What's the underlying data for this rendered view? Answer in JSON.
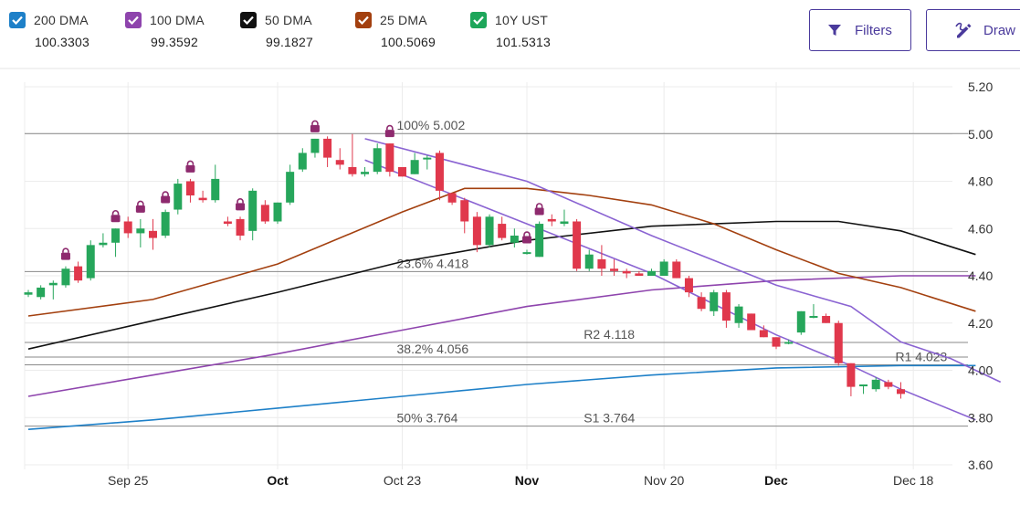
{
  "legend": [
    {
      "name": "200 DMA",
      "value": "100.3303",
      "color": "#1e80c8",
      "checked": true
    },
    {
      "name": "100 DMA",
      "value": "99.3592",
      "color": "#8e44ad",
      "checked": true
    },
    {
      "name": "50 DMA",
      "value": "99.1827",
      "color": "#111111",
      "checked": true
    },
    {
      "name": "25 DMA",
      "value": "100.5069",
      "color": "#a3400f",
      "checked": true
    },
    {
      "name": "10Y UST",
      "value": "101.5313",
      "color": "#1da65a",
      "checked": true
    }
  ],
  "toolbar": {
    "filters_label": "Filters",
    "draw_label": "Draw"
  },
  "chart_data": {
    "type": "candlestick",
    "ylim": [
      3.6,
      5.2
    ],
    "y_ticks": [
      "5.20",
      "5.00",
      "4.80",
      "4.60",
      "4.40",
      "4.20",
      "4.00",
      "3.80",
      "3.60"
    ],
    "x_ticks": [
      {
        "label": "Sep 25",
        "bar": 8,
        "bold": false
      },
      {
        "label": "Oct",
        "bar": 20,
        "bold": true
      },
      {
        "label": "Oct 23",
        "bar": 30,
        "bold": false
      },
      {
        "label": "Nov",
        "bar": 40,
        "bold": true
      },
      {
        "label": "Nov 20",
        "bar": 51,
        "bold": false
      },
      {
        "label": "Dec",
        "bar": 60,
        "bold": true
      },
      {
        "label": "Dec 18",
        "bar": 71,
        "bold": false
      }
    ],
    "candles": [
      [
        4.32,
        4.34,
        4.31,
        4.33
      ],
      [
        4.31,
        4.36,
        4.3,
        4.35
      ],
      [
        4.36,
        4.38,
        4.3,
        4.37
      ],
      [
        4.36,
        4.44,
        4.35,
        4.43
      ],
      [
        4.44,
        4.46,
        4.37,
        4.38
      ],
      [
        4.39,
        4.55,
        4.38,
        4.53
      ],
      [
        4.53,
        4.58,
        4.52,
        4.54
      ],
      [
        4.54,
        4.6,
        4.48,
        4.6
      ],
      [
        4.63,
        4.65,
        4.56,
        4.58
      ],
      [
        4.58,
        4.64,
        4.52,
        4.6
      ],
      [
        4.59,
        4.64,
        4.51,
        4.56
      ],
      [
        4.57,
        4.68,
        4.56,
        4.67
      ],
      [
        4.68,
        4.81,
        4.66,
        4.79
      ],
      [
        4.8,
        4.81,
        4.71,
        4.74
      ],
      [
        4.73,
        4.76,
        4.71,
        4.72
      ],
      [
        4.72,
        4.87,
        4.71,
        4.81
      ],
      [
        4.63,
        4.65,
        4.61,
        4.62
      ],
      [
        4.64,
        4.65,
        4.55,
        4.57
      ],
      [
        4.59,
        4.77,
        4.55,
        4.76
      ],
      [
        4.7,
        4.72,
        4.62,
        4.63
      ],
      [
        4.63,
        4.71,
        4.62,
        4.71
      ],
      [
        4.71,
        4.87,
        4.7,
        4.84
      ],
      [
        4.85,
        4.94,
        4.84,
        4.92
      ],
      [
        4.92,
        4.98,
        4.9,
        4.98
      ],
      [
        4.98,
        4.99,
        4.86,
        4.9
      ],
      [
        4.89,
        4.94,
        4.85,
        4.87
      ],
      [
        4.86,
        5.0,
        4.82,
        4.83
      ],
      [
        4.83,
        4.86,
        4.82,
        4.84
      ],
      [
        4.84,
        4.96,
        4.83,
        4.94
      ],
      [
        4.96,
        4.96,
        4.82,
        4.84
      ],
      [
        4.86,
        4.86,
        4.82,
        4.82
      ],
      [
        4.83,
        4.92,
        4.83,
        4.89
      ],
      [
        4.9,
        4.91,
        4.85,
        4.9
      ],
      [
        4.92,
        4.93,
        4.72,
        4.76
      ],
      [
        4.75,
        4.75,
        4.7,
        4.71
      ],
      [
        4.72,
        4.73,
        4.58,
        4.63
      ],
      [
        4.65,
        4.67,
        4.5,
        4.53
      ],
      [
        4.53,
        4.66,
        4.52,
        4.65
      ],
      [
        4.62,
        4.65,
        4.55,
        4.56
      ],
      [
        4.54,
        4.6,
        4.52,
        4.57
      ],
      [
        4.5,
        4.51,
        4.49,
        4.5
      ],
      [
        4.48,
        4.63,
        4.48,
        4.62
      ],
      [
        4.64,
        4.66,
        4.61,
        4.63
      ],
      [
        4.62,
        4.68,
        4.61,
        4.63
      ],
      [
        4.63,
        4.64,
        4.42,
        4.43
      ],
      [
        4.43,
        4.51,
        4.42,
        4.49
      ],
      [
        4.47,
        4.53,
        4.4,
        4.43
      ],
      [
        4.43,
        4.47,
        4.4,
        4.42
      ],
      [
        4.42,
        4.43,
        4.39,
        4.41
      ],
      [
        4.41,
        4.42,
        4.4,
        4.4
      ],
      [
        4.4,
        4.43,
        4.4,
        4.42
      ],
      [
        4.4,
        4.47,
        4.4,
        4.46
      ],
      [
        4.46,
        4.47,
        4.39,
        4.39
      ],
      [
        4.39,
        4.4,
        4.31,
        4.33
      ],
      [
        4.31,
        4.33,
        4.25,
        4.26
      ],
      [
        4.25,
        4.34,
        4.23,
        4.33
      ],
      [
        4.33,
        4.34,
        4.18,
        4.21
      ],
      [
        4.2,
        4.28,
        4.18,
        4.27
      ],
      [
        4.24,
        4.24,
        4.17,
        4.17
      ],
      [
        4.17,
        4.19,
        4.14,
        4.14
      ],
      [
        4.14,
        4.14,
        4.09,
        4.1
      ],
      [
        4.12,
        4.13,
        4.11,
        4.12
      ],
      [
        4.16,
        4.25,
        4.15,
        4.25
      ],
      [
        4.23,
        4.28,
        4.22,
        4.23
      ],
      [
        4.23,
        4.24,
        4.2,
        4.2
      ],
      [
        4.2,
        4.21,
        4.02,
        4.03
      ],
      [
        4.03,
        4.03,
        3.89,
        3.93
      ],
      [
        3.94,
        3.94,
        3.9,
        3.94
      ],
      [
        3.92,
        3.97,
        3.91,
        3.96
      ],
      [
        3.95,
        3.96,
        3.92,
        3.93
      ],
      [
        3.92,
        3.95,
        3.88,
        3.9
      ]
    ],
    "series": [
      {
        "name": "200 DMA",
        "color": "#1e80c8",
        "points": [
          [
            0,
            3.75
          ],
          [
            10,
            3.79
          ],
          [
            20,
            3.84
          ],
          [
            30,
            3.89
          ],
          [
            40,
            3.94
          ],
          [
            50,
            3.98
          ],
          [
            60,
            4.01
          ],
          [
            70,
            4.02
          ],
          [
            76,
            4.02
          ]
        ]
      },
      {
        "name": "100 DMA",
        "color": "#8e44ad",
        "points": [
          [
            0,
            3.89
          ],
          [
            10,
            3.98
          ],
          [
            20,
            4.07
          ],
          [
            30,
            4.17
          ],
          [
            40,
            4.27
          ],
          [
            50,
            4.34
          ],
          [
            60,
            4.38
          ],
          [
            70,
            4.4
          ],
          [
            76,
            4.4
          ]
        ]
      },
      {
        "name": "50 DMA",
        "color": "#111111",
        "points": [
          [
            0,
            4.09
          ],
          [
            10,
            4.21
          ],
          [
            20,
            4.33
          ],
          [
            30,
            4.46
          ],
          [
            40,
            4.55
          ],
          [
            50,
            4.61
          ],
          [
            60,
            4.63
          ],
          [
            65,
            4.63
          ],
          [
            70,
            4.59
          ],
          [
            76,
            4.49
          ]
        ]
      },
      {
        "name": "25 DMA",
        "color": "#a3400f",
        "points": [
          [
            0,
            4.23
          ],
          [
            10,
            4.3
          ],
          [
            20,
            4.45
          ],
          [
            30,
            4.67
          ],
          [
            35,
            4.77
          ],
          [
            40,
            4.77
          ],
          [
            45,
            4.74
          ],
          [
            50,
            4.7
          ],
          [
            55,
            4.62
          ],
          [
            60,
            4.51
          ],
          [
            65,
            4.41
          ],
          [
            70,
            4.35
          ],
          [
            76,
            4.25
          ]
        ]
      },
      {
        "name": "Channel upper",
        "color": "#8a63d2",
        "points": [
          [
            27,
            4.98
          ],
          [
            40,
            4.8
          ],
          [
            50,
            4.57
          ],
          [
            60,
            4.36
          ],
          [
            66,
            4.27
          ],
          [
            70,
            4.12
          ],
          [
            74,
            4.05
          ],
          [
            78,
            3.95
          ]
        ]
      },
      {
        "name": "Channel lower",
        "color": "#8a63d2",
        "points": [
          [
            27,
            4.89
          ],
          [
            40,
            4.62
          ],
          [
            50,
            4.41
          ],
          [
            60,
            4.15
          ],
          [
            66,
            4.02
          ],
          [
            70,
            3.92
          ],
          [
            76,
            3.79
          ]
        ]
      }
    ],
    "levels": [
      {
        "value": 5.002,
        "label": "100% 5.002",
        "x_bar": 30
      },
      {
        "value": 4.418,
        "label": "23.6% 4.418",
        "x_bar": 30
      },
      {
        "value": 4.118,
        "label": "R2 4.118",
        "x_bar": 45
      },
      {
        "value": 4.056,
        "label": "38.2% 4.056",
        "x_bar": 30
      },
      {
        "value": 4.023,
        "label": "R1 4.023",
        "x_bar": 70
      },
      {
        "value": 3.764,
        "label": "50% 3.764",
        "x_bar": 30
      },
      {
        "value": 3.764,
        "label": "S1 3.764",
        "x_bar": 45
      }
    ],
    "lock_markers": [
      3,
      7,
      9,
      11,
      13,
      17,
      23,
      29,
      40,
      41
    ]
  }
}
